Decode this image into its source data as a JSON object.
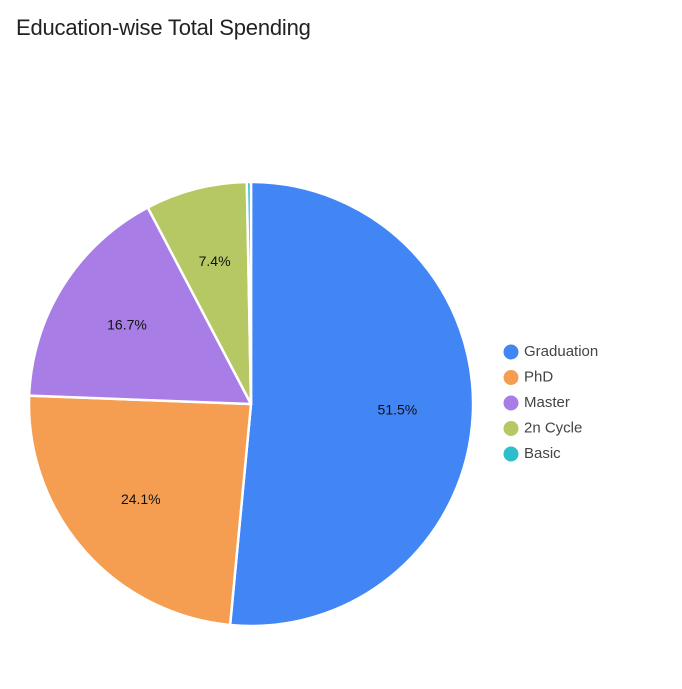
{
  "chart_data": {
    "type": "pie",
    "title": "Education-wise Total Spending",
    "categories": [
      "Graduation",
      "PhD",
      "Master",
      "2n Cycle",
      "Basic"
    ],
    "values": [
      51.5,
      24.1,
      16.7,
      7.4,
      0.3
    ],
    "labels": [
      "51.5%",
      "24.1%",
      "16.7%",
      "7.4%",
      ""
    ],
    "colors": [
      "#4285f4",
      "#f59e52",
      "#a97de6",
      "#b5c864",
      "#2ebdc9"
    ],
    "legend_position": "right"
  }
}
